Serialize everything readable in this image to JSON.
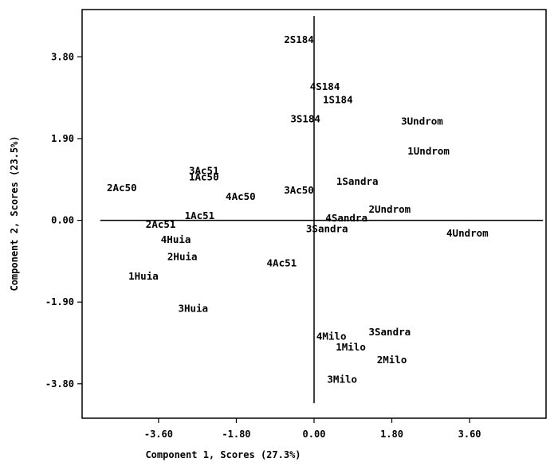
{
  "chart_data": {
    "type": "scatter",
    "title": "",
    "xlabel": "Component 1, Scores (27.3%)",
    "ylabel": "Component 2, Scores (23.5%)",
    "xlim": [
      -5.37,
      5.37
    ],
    "ylim": [
      -4.6,
      4.9
    ],
    "x_ticks": [
      -3.6,
      -1.8,
      0.0,
      1.8,
      3.6
    ],
    "x_tick_labels": [
      "-3.60",
      "-1.80",
      "0.00",
      "1.80",
      "3.60"
    ],
    "y_ticks": [
      3.8,
      1.9,
      0.0,
      -1.9,
      -3.8
    ],
    "y_tick_labels": [
      "3.80",
      "1.90",
      "0.00",
      "-1.90",
      "-3.80"
    ],
    "grid": false,
    "points": [
      {
        "label": "2S184",
        "x": -0.35,
        "y": 4.2
      },
      {
        "label": "4S184",
        "x": 0.25,
        "y": 3.1
      },
      {
        "label": "1S184",
        "x": 0.55,
        "y": 2.8
      },
      {
        "label": "3S184",
        "x": -0.2,
        "y": 2.35
      },
      {
        "label": "3Undrom",
        "x": 2.5,
        "y": 2.3
      },
      {
        "label": "1Undrom",
        "x": 2.65,
        "y": 1.6
      },
      {
        "label": "3Ac51",
        "x": -2.55,
        "y": 1.15
      },
      {
        "label": "1Ac50",
        "x": -2.55,
        "y": 1.0
      },
      {
        "label": "2Ac50",
        "x": -4.45,
        "y": 0.75
      },
      {
        "label": "4Ac50",
        "x": -1.7,
        "y": 0.55
      },
      {
        "label": "3Ac50",
        "x": -0.35,
        "y": 0.7
      },
      {
        "label": "1Sandra",
        "x": 1.0,
        "y": 0.9
      },
      {
        "label": "2Undrom",
        "x": 1.75,
        "y": 0.25
      },
      {
        "label": "4Sandra",
        "x": 0.75,
        "y": 0.05
      },
      {
        "label": "1Ac51",
        "x": -2.65,
        "y": 0.1
      },
      {
        "label": "2Ac51",
        "x": -3.55,
        "y": -0.1
      },
      {
        "label": "3Sandra",
        "x": 0.3,
        "y": -0.2
      },
      {
        "label": "4Undrom",
        "x": 3.55,
        "y": -0.3
      },
      {
        "label": "4Huia",
        "x": -3.2,
        "y": -0.45
      },
      {
        "label": "2Huia",
        "x": -3.05,
        "y": -0.85
      },
      {
        "label": "4Ac51",
        "x": -0.75,
        "y": -1.0
      },
      {
        "label": "1Huia",
        "x": -3.95,
        "y": -1.3
      },
      {
        "label": "3Huia",
        "x": -2.8,
        "y": -2.05
      },
      {
        "label": "4Milo",
        "x": 0.4,
        "y": -2.7
      },
      {
        "label": "3Sandra",
        "x": 1.75,
        "y": -2.6
      },
      {
        "label": "1Milo",
        "x": 0.85,
        "y": -2.95
      },
      {
        "label": "2Milo",
        "x": 1.8,
        "y": -3.25
      },
      {
        "label": "3Milo",
        "x": 0.65,
        "y": -3.7
      }
    ]
  }
}
